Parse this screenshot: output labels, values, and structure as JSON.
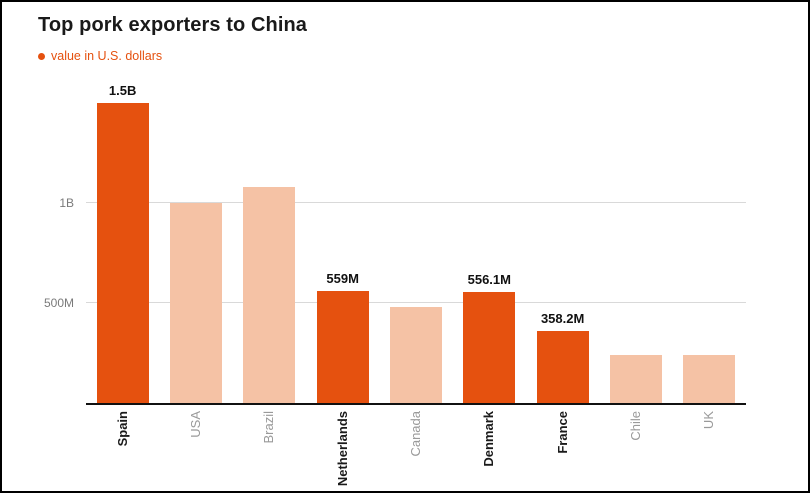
{
  "header": {
    "title": "Top pork exporters to China",
    "legend": {
      "label": "value in U.S. dollars",
      "color": "#e5510f"
    }
  },
  "chart_data": {
    "type": "bar",
    "title": "Top pork exporters to China",
    "legend": "value in U.S. dollars",
    "unit": "U.S. dollars",
    "categories": [
      "Spain",
      "USA",
      "Brazil",
      "Netherlands",
      "Canada",
      "Denmark",
      "France",
      "Chile",
      "UK"
    ],
    "values_millions": [
      1500,
      1000,
      1080,
      559,
      480,
      556.1,
      358.2,
      240,
      240
    ],
    "bar_labels": [
      "1.5B",
      "",
      "",
      "559M",
      "",
      "556.1M",
      "358.2M",
      "",
      ""
    ],
    "highlighted": [
      true,
      false,
      false,
      true,
      false,
      true,
      true,
      false,
      false
    ],
    "colors": {
      "highlight": "#e5510f",
      "muted": "#f5c2a5"
    },
    "ylim": [
      0,
      1550
    ],
    "yticks": [
      {
        "value": 500,
        "label": "500M"
      },
      {
        "value": 1000,
        "label": "1B"
      }
    ],
    "grid": true,
    "legend_position": "top-left",
    "x_label_rotation": "vertical-bottom-to-top"
  }
}
